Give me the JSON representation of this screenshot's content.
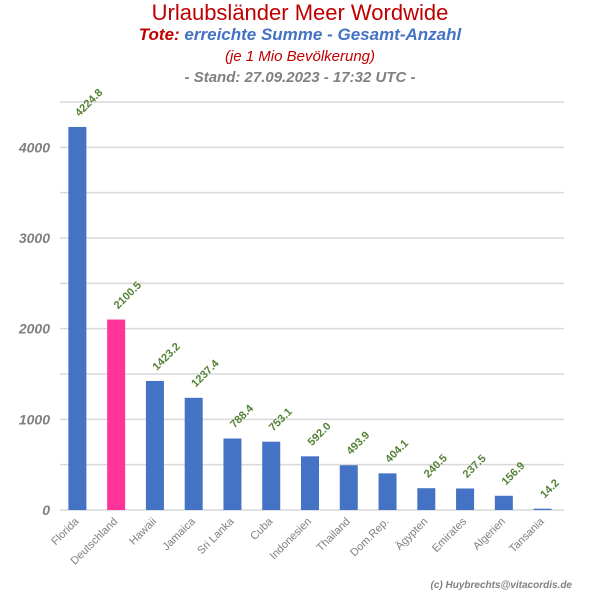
{
  "title": "Urlaubsländer Meer Wordwide",
  "subtitle_part1": "Tote:",
  "subtitle_part2": "erreichte Summe - Gesamt-Anzahl",
  "subtitle_line2": "(je 1 Mio Bevölkerung)",
  "subtitle_line3": "- Stand: 27.09.2023 - 17:32 UTC -",
  "credit": "(c) Huybrechts@vitacordis.de",
  "colors": {
    "bar": "#4472c4",
    "highlight": "#ff3399",
    "label": "#548235",
    "grid": "#d9d9d9",
    "tick": "#808080"
  },
  "chart_data": {
    "type": "bar",
    "categories": [
      "Florida",
      "Deutschland",
      "Hawaii",
      "Jamaica",
      "Sri Lanka",
      "Cuba",
      "Indonesien",
      "Thailand",
      "Dom.Rep.",
      "Ägypten",
      "Emirates",
      "Algerien",
      "Tansania"
    ],
    "values": [
      4224.8,
      2100.5,
      1423.2,
      1237.4,
      788.4,
      753.1,
      592.0,
      493.9,
      404.1,
      240.5,
      237.5,
      156.9,
      14.2
    ],
    "data_labels": [
      "4224.8",
      "2100.5",
      "1423.2",
      "1237.4",
      "788.4",
      "753.1",
      "592.0",
      "493.9",
      "404.1",
      "240.5",
      "237.5",
      "156.9",
      "14.2"
    ],
    "highlight_index": 1,
    "ylim": [
      0,
      4500
    ],
    "yticks": [
      0,
      1000,
      2000,
      3000,
      4000
    ],
    "minor_grid": [
      500,
      1500,
      2500,
      3500,
      4500
    ],
    "grid": true,
    "title": "Urlaubsländer Meer Wordwide"
  }
}
